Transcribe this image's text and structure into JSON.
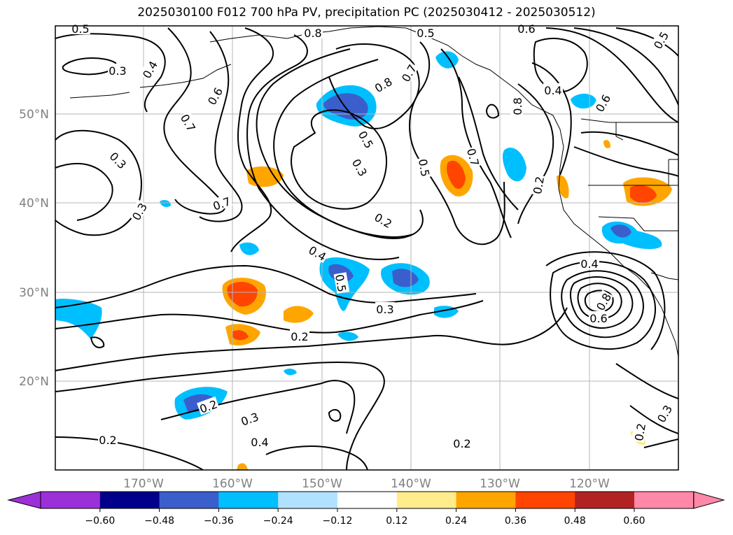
{
  "title": "2025030100 F012 700 hPa PV, precipitation PC (2025030412 - 2025030512)",
  "map": {
    "region": "North Pacific",
    "lon_range": [
      -180,
      -110
    ],
    "lat_range": [
      10,
      60
    ],
    "grid": true,
    "lon_tick_labels": [
      "170°W",
      "160°W",
      "150°W",
      "140°W",
      "130°W",
      "120°W"
    ],
    "lat_tick_labels": [
      "50°N",
      "40°N",
      "30°N",
      "20°N"
    ]
  },
  "contour_labels": [
    {
      "text": "0.5"
    },
    {
      "text": "0.6"
    },
    {
      "text": "0.5"
    },
    {
      "text": "0.6"
    },
    {
      "text": "0.5"
    },
    {
      "text": "0.3"
    },
    {
      "text": "0.4"
    },
    {
      "text": "0.6"
    },
    {
      "text": "0.8"
    },
    {
      "text": "0.8"
    },
    {
      "text": "0.7"
    },
    {
      "text": "0.4"
    },
    {
      "text": "0.6"
    },
    {
      "text": "0.7"
    },
    {
      "text": "0.8"
    },
    {
      "text": "0.3"
    },
    {
      "text": "0.5"
    },
    {
      "text": "0.7"
    },
    {
      "text": "0.3"
    },
    {
      "text": "0.5"
    },
    {
      "text": "0.2"
    },
    {
      "text": "0.7"
    },
    {
      "text": "0.3"
    },
    {
      "text": "0.2"
    },
    {
      "text": "0.4"
    },
    {
      "text": "0.5"
    },
    {
      "text": "0.3"
    },
    {
      "text": "0.4"
    },
    {
      "text": "0.8"
    },
    {
      "text": "0.6"
    },
    {
      "text": "0.2"
    },
    {
      "text": "0.2"
    },
    {
      "text": "0.3"
    },
    {
      "text": "0.4"
    },
    {
      "text": "0.2"
    },
    {
      "text": "0.2"
    },
    {
      "text": "0.2"
    },
    {
      "text": "0.3"
    }
  ],
  "colorbar": {
    "ticks": [
      "−0.60",
      "−0.48",
      "−0.36",
      "−0.24",
      "−0.12",
      "0.12",
      "0.24",
      "0.36",
      "0.48",
      "0.60"
    ],
    "colors": [
      "#9b30d9",
      "#00008b",
      "#3a5fcd",
      "#00bfff",
      "#b0e2ff",
      "#ffffff",
      "#ffec8b",
      "#ffa500",
      "#ff4500",
      "#b22222",
      "#ff88a8"
    ]
  },
  "precip_colors": {
    "strong_neg": "#3a5fcd",
    "neg": "#00bfff",
    "weak_neg": "#b0e2ff",
    "weak_pos": "#ffec8b",
    "pos": "#ffa500",
    "strong_pos": "#ff4500"
  }
}
